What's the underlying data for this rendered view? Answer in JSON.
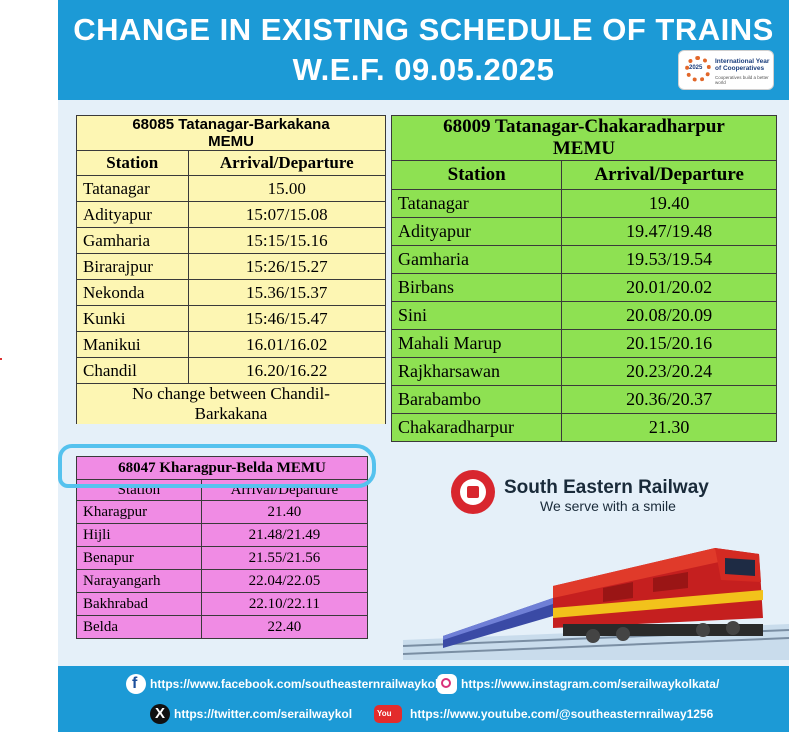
{
  "header": {
    "title_line1": "CHANGE IN EXISTING SCHEDULE OF TRAINS",
    "title_line2": "W.E.F. 09.05.2025",
    "badge": {
      "year": "2025",
      "text": "International Year of Cooperatives",
      "subtext": "Cooperatives build a better world"
    }
  },
  "trains": [
    {
      "name": "68085 Tatanagar-Barkakana MEMU",
      "name_line1": "68085 Tatanagar-Barkakana",
      "name_line2": "MEMU",
      "columns": [
        "Station",
        "Arrival/Departure"
      ],
      "rows": [
        [
          "Tatanagar",
          "15.00"
        ],
        [
          "Adityapur",
          "15:07/15.08"
        ],
        [
          "Gamharia",
          "15:15/15.16"
        ],
        [
          "Birarajpur",
          "15:26/15.27"
        ],
        [
          "Nekonda",
          "15.36/15.37"
        ],
        [
          "Kunki",
          "15:46/15.47"
        ],
        [
          "Manikui",
          "16.01/16.02"
        ],
        [
          "Chandil",
          "16.20/16.22"
        ]
      ],
      "note_line1": "No change between Chandil-",
      "note_line2": "Barkakana"
    },
    {
      "name_line1": "68009 Tatanagar-Chakaradharpur",
      "name_line2": "MEMU",
      "columns": [
        "Station",
        "Arrival/Departure"
      ],
      "rows": [
        [
          "Tatanagar",
          "19.40"
        ],
        [
          "Adityapur",
          "19.47/19.48"
        ],
        [
          "Gamharia",
          "19.53/19.54"
        ],
        [
          "Birbans",
          "20.01/20.02"
        ],
        [
          "Sini",
          "20.08/20.09"
        ],
        [
          "Mahali Marup",
          "20.15/20.16"
        ],
        [
          "Rajkharsawan",
          "20.23/20.24"
        ],
        [
          "Barabambo",
          "20.36/20.37"
        ],
        [
          "Chakaradharpur",
          "21.30"
        ]
      ]
    },
    {
      "name_line1": "68047 Kharagpur-Belda MEMU",
      "columns": [
        "Station",
        "Arrival/Departure"
      ],
      "rows": [
        [
          "Kharagpur",
          "21.40"
        ],
        [
          "Hijli",
          "21.48/21.49"
        ],
        [
          "Benapur",
          "21.55/21.56"
        ],
        [
          "Narayangarh",
          "22.04/22.05"
        ],
        [
          "Bakhrabad",
          "22.10/22.11"
        ],
        [
          "Belda",
          "22.40"
        ]
      ]
    }
  ],
  "branding": {
    "name": "South Eastern Railway",
    "tagline": "We serve with a smile"
  },
  "footer": {
    "facebook": "https://www.facebook.com/southeasternrailwaykol",
    "instagram": "https://www.instagram.com/serailwaykolkata/",
    "twitter": "https://twitter.com/serailwaykol",
    "youtube": "https://www.youtube.com/@southeasternrailway1256"
  },
  "colors": {
    "header_bg": "#1c9ad6",
    "table1_bg": "#fdf6b3",
    "table2_bg": "#8ee152",
    "table3_bg": "#f08be4",
    "highlight_stroke": "#55c2ee"
  },
  "icons": [
    "facebook-icon",
    "instagram-icon",
    "x-twitter-icon",
    "youtube-icon",
    "ser-logo-icon",
    "train-image"
  ]
}
